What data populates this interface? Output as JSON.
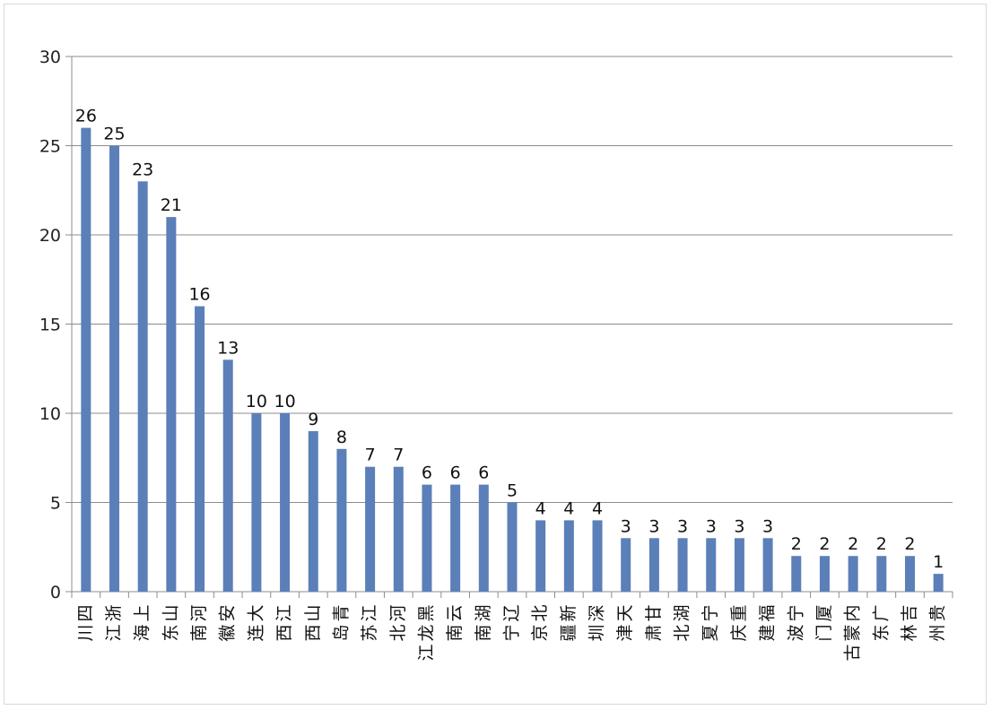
{
  "chart_data": {
    "type": "bar",
    "categories": [
      "四川",
      "浙江",
      "上海",
      "山东",
      "河南",
      "安徽",
      "大连",
      "江西",
      "山西",
      "青岛",
      "江苏",
      "河北",
      "黑龙江",
      "云南",
      "湖南",
      "辽宁",
      "北京",
      "新疆",
      "深圳",
      "天津",
      "甘肃",
      "湖北",
      "宁夏",
      "重庆",
      "福建",
      "宁波",
      "厦门",
      "内蒙古",
      "广东",
      "吉林",
      "贵州"
    ],
    "values": [
      26,
      25,
      23,
      21,
      16,
      13,
      10,
      10,
      9,
      8,
      7,
      7,
      6,
      6,
      6,
      5,
      4,
      4,
      4,
      3,
      3,
      3,
      3,
      3,
      3,
      2,
      2,
      2,
      2,
      2,
      1
    ],
    "title": "",
    "xlabel": "",
    "ylabel": "",
    "ylim": [
      0,
      30
    ],
    "yticks": [
      "0",
      "5",
      "10",
      "15",
      "20",
      "25",
      "30"
    ],
    "grid": true,
    "legend": "none",
    "bar_color": "#5B7FB8",
    "grid_color": "#8c8c8c"
  }
}
